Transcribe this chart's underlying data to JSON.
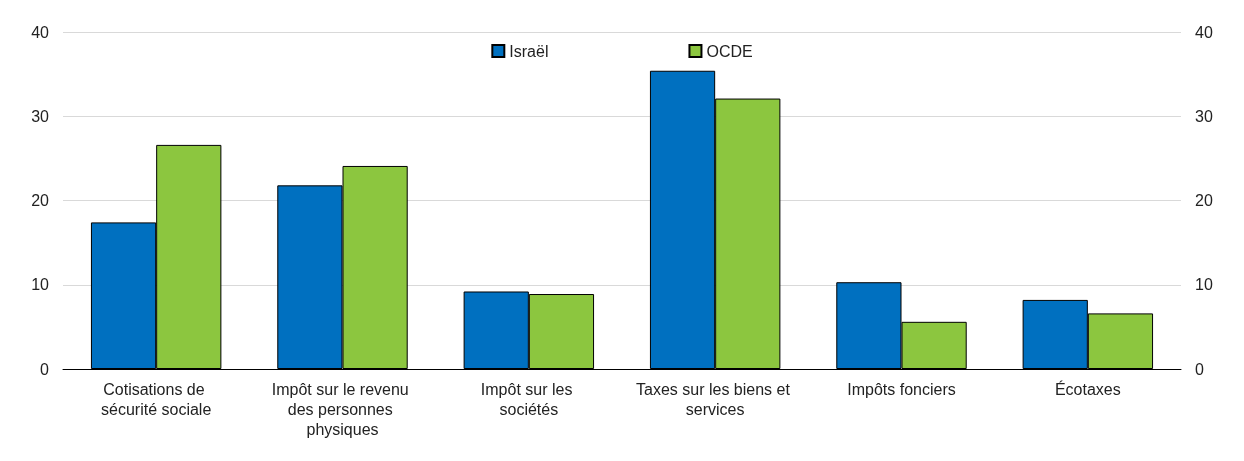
{
  "chart_data": {
    "type": "bar",
    "categories": [
      "Cotisations de sécurité sociale",
      "Impôt sur le revenu des personnes physiques",
      "Impôt sur les sociétés",
      "Taxes sur les biens et services",
      "Impôts fonciers",
      "Écotaxes"
    ],
    "series": [
      {
        "name": "Israël",
        "color": "#0070c0",
        "values": [
          17.4,
          21.8,
          9.2,
          35.4,
          10.3,
          8.2
        ]
      },
      {
        "name": "OCDE",
        "color": "#8cc63f",
        "values": [
          26.6,
          24.1,
          8.9,
          32.1,
          5.6,
          6.6
        ]
      }
    ],
    "ylim": [
      0,
      40
    ],
    "yticks": [
      0,
      10,
      20,
      30,
      40
    ],
    "y2lim": [
      0,
      40
    ],
    "y2ticks": [
      0,
      10,
      20,
      30,
      40
    ],
    "grid": "y",
    "legend": "top"
  }
}
